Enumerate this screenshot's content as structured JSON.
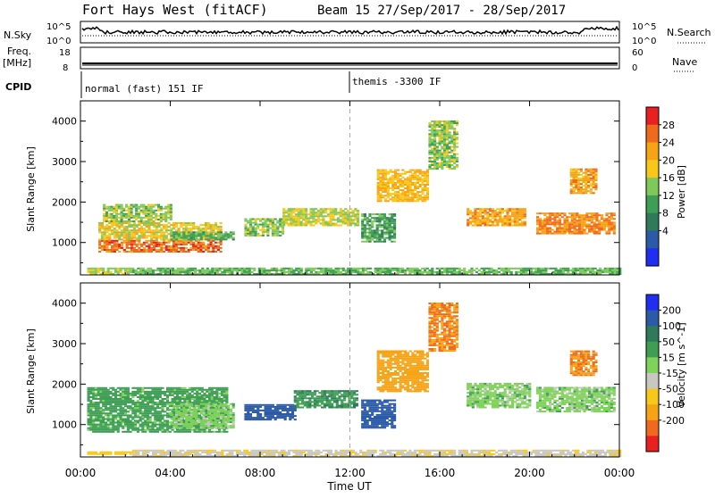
{
  "header": {
    "title": "Fort Hays West (fitACF)",
    "beam_dates": "Beam 15  27/Sep/2017 - 28/Sep/2017"
  },
  "top_panels": {
    "nsky_label": "N.Sky",
    "nsky_ticks": [
      "10^5",
      "10^0"
    ],
    "nsearch_label": "N.Search",
    "nsearch_ticks": [
      "10^5",
      "10^0"
    ],
    "freq_label_1": "Freq.",
    "freq_label_2": "[MHz]",
    "freq_ticks": [
      "18",
      "8"
    ],
    "nave_label": "Nave",
    "nave_ticks": [
      "60",
      "0"
    ],
    "cpid_label": "CPID",
    "cpid_modes": [
      {
        "label": "normal (fast) 151 IF",
        "start_hour": 0
      },
      {
        "label": "themis -3300 IF",
        "start_hour": 12
      }
    ]
  },
  "x_axis": {
    "label": "Time UT",
    "ticks": [
      "00:00",
      "04:00",
      "08:00",
      "12:00",
      "16:00",
      "20:00",
      "00:00"
    ]
  },
  "chart_data": [
    {
      "type": "heatmap",
      "name": "power",
      "ylabel": "Slant Range [km]",
      "yticks": [
        "4000",
        "3000",
        "2000",
        "1000"
      ],
      "ytick_values": [
        4000,
        3000,
        2000,
        1000
      ],
      "ylim": [
        200,
        4500
      ],
      "xlim_hours": [
        0,
        24
      ],
      "colorbar_label": "Power [dB]",
      "colorbar_ticks": [
        "28",
        "24",
        "20",
        "16",
        "12",
        "8",
        "4"
      ],
      "colorbar_colors": [
        "#e8201f",
        "#f06a1e",
        "#f6a316",
        "#f7c81a",
        "#7fc85a",
        "#3d9e54",
        "#2f7a5a",
        "#2b5aa8",
        "#1f2ef0"
      ],
      "regions": [
        {
          "t0": 0.8,
          "t1": 6.3,
          "r0": 750,
          "r1": 1050,
          "value": 26
        },
        {
          "t0": 0.8,
          "t1": 6.3,
          "r0": 1050,
          "r1": 1500,
          "value": 18
        },
        {
          "t0": 1.0,
          "t1": 4.0,
          "r0": 1500,
          "r1": 1950,
          "value": 14
        },
        {
          "t0": 4.0,
          "t1": 6.8,
          "r0": 1050,
          "r1": 1250,
          "value": 11
        },
        {
          "t0": 7.3,
          "t1": 9.0,
          "r0": 1150,
          "r1": 1600,
          "value": 14
        },
        {
          "t0": 9.0,
          "t1": 12.3,
          "r0": 1400,
          "r1": 1850,
          "value": 16
        },
        {
          "t0": 12.5,
          "t1": 14.0,
          "r0": 1000,
          "r1": 1700,
          "value": 10
        },
        {
          "t0": 13.2,
          "t1": 15.5,
          "r0": 2000,
          "r1": 2800,
          "value": 20
        },
        {
          "t0": 15.5,
          "t1": 16.8,
          "r0": 2800,
          "r1": 4000,
          "value": 14
        },
        {
          "t0": 17.2,
          "t1": 19.8,
          "r0": 1400,
          "r1": 1850,
          "value": 22
        },
        {
          "t0": 20.3,
          "t1": 23.8,
          "r0": 1200,
          "r1": 1700,
          "value": 24
        },
        {
          "t0": 21.8,
          "t1": 23.0,
          "r0": 2200,
          "r1": 2800,
          "value": 22
        },
        {
          "t0": 0.3,
          "t1": 2.3,
          "r0": 200,
          "r1": 350,
          "value": 16
        },
        {
          "t0": 2.3,
          "t1": 24,
          "r0": 200,
          "r1": 350,
          "value": 12
        }
      ]
    },
    {
      "type": "heatmap",
      "name": "velocity",
      "ylabel": "Slant Range [km]",
      "yticks": [
        "4000",
        "3000",
        "2000",
        "1000"
      ],
      "ytick_values": [
        4000,
        3000,
        2000,
        1000
      ],
      "ylim": [
        200,
        4500
      ],
      "xlim_hours": [
        0,
        24
      ],
      "colorbar_label": "Velocity [m s^-1]",
      "colorbar_ticks": [
        "200",
        "100",
        "50",
        "15",
        "-15",
        "-50",
        "-100",
        "-200"
      ],
      "colorbar_colors": [
        "#1f2ef0",
        "#2b5aa8",
        "#2f7a5a",
        "#3d9e54",
        "#7fd25a",
        "#c8c8c0",
        "#f7c81a",
        "#f6a316",
        "#f06a1e",
        "#e8201f"
      ],
      "regions": [
        {
          "t0": 0.3,
          "t1": 6.5,
          "r0": 800,
          "r1": 1900,
          "value": 30
        },
        {
          "t0": 4.0,
          "t1": 6.8,
          "r0": 900,
          "r1": 1500,
          "value": 0
        },
        {
          "t0": 7.3,
          "t1": 9.5,
          "r0": 1100,
          "r1": 1500,
          "value": 120
        },
        {
          "t0": 9.5,
          "t1": 12.3,
          "r0": 1400,
          "r1": 1850,
          "value": 40
        },
        {
          "t0": 12.5,
          "t1": 14.0,
          "r0": 900,
          "r1": 1600,
          "value": 120
        },
        {
          "t0": 13.2,
          "t1": 15.5,
          "r0": 1800,
          "r1": 2800,
          "value": -150
        },
        {
          "t0": 15.5,
          "t1": 16.8,
          "r0": 2800,
          "r1": 4000,
          "value": -200
        },
        {
          "t0": 17.2,
          "t1": 20.0,
          "r0": 1400,
          "r1": 2000,
          "value": 0
        },
        {
          "t0": 20.3,
          "t1": 23.8,
          "r0": 1300,
          "r1": 1900,
          "value": 0
        },
        {
          "t0": 21.8,
          "t1": 23.0,
          "r0": 2200,
          "r1": 2800,
          "value": -200
        },
        {
          "t0": 0.3,
          "t1": 2.3,
          "r0": 250,
          "r1": 330,
          "value": -80
        },
        {
          "t0": 2.3,
          "t1": 24,
          "r0": 200,
          "r1": 350,
          "value": -40
        }
      ]
    }
  ]
}
